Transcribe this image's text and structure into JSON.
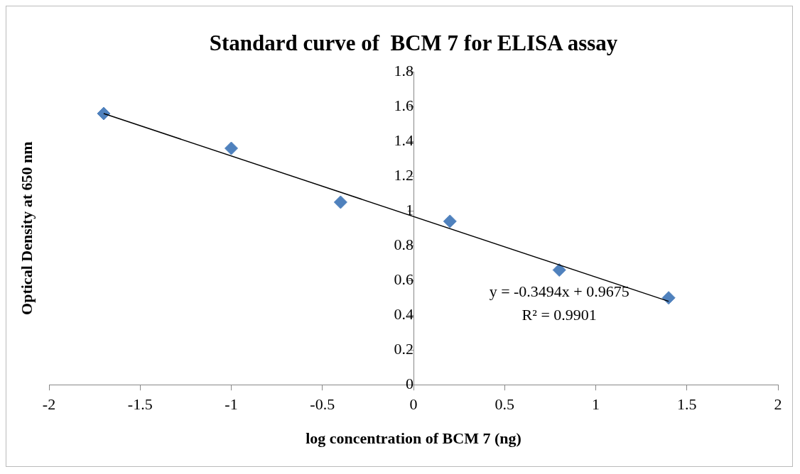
{
  "chart_data": {
    "type": "scatter",
    "title": "Standard curve of  BCM 7 for ELISA assay",
    "xlabel": "log concentration of BCM 7 (ng)",
    "ylabel": "Optical Density at 650 nm",
    "x": [
      -1.7,
      -1.0,
      -0.4,
      0.2,
      0.8,
      1.4
    ],
    "series": [
      {
        "color": "#4f81bd",
        "values": [
          1.56,
          1.36,
          1.05,
          0.94,
          0.66,
          0.5
        ],
        "marker": "diamond"
      },
      {
        "type": "line",
        "color": "#000000",
        "x": [
          -1.7,
          1.4
        ],
        "values": [
          1.56,
          0.48
        ],
        "marker": "none",
        "line_style": "solid"
      }
    ],
    "xlim": [
      -2,
      2
    ],
    "xticks": [
      -2,
      -1.5,
      -1,
      -0.5,
      0,
      0.5,
      1,
      1.5,
      2
    ],
    "ylim": [
      0,
      1.8
    ],
    "yticks": [
      0,
      0.2,
      0.4,
      0.6,
      0.8,
      1,
      1.2,
      1.4,
      1.6,
      1.8
    ],
    "grid": false,
    "legend": false,
    "annotations": [
      "y = -0.3494x + 0.9675",
      "R² = 0.9901"
    ]
  }
}
